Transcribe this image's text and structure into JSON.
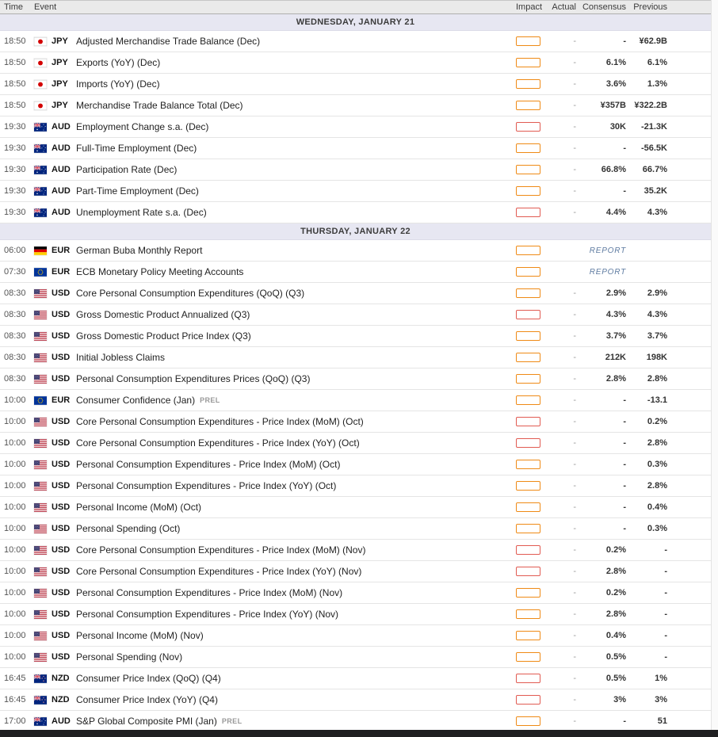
{
  "header": {
    "columns": {
      "time": "Time",
      "event": "Event",
      "impact": "Impact",
      "actual": "Actual",
      "consensus": "Consensus",
      "previous": "Previous"
    }
  },
  "colors": {
    "impact_medium": "#EF8A15",
    "impact_high": "#E15B52",
    "section_bg": "#E7E7F2",
    "header_bg": "#EAEAEA",
    "report_color": "#5D7AA0"
  },
  "sections": [
    {
      "title": "WEDNESDAY, JANUARY 21",
      "rows": [
        {
          "time": "18:50",
          "flag": "jpy",
          "currency": "JPY",
          "event": "Adjusted Merchandise Trade Balance (Dec)",
          "impact": "medium",
          "actual": "-",
          "consensus": "-",
          "previous": "¥62.9B"
        },
        {
          "time": "18:50",
          "flag": "jpy",
          "currency": "JPY",
          "event": "Exports (YoY) (Dec)",
          "impact": "medium",
          "actual": "-",
          "consensus": "6.1%",
          "previous": "6.1%"
        },
        {
          "time": "18:50",
          "flag": "jpy",
          "currency": "JPY",
          "event": "Imports (YoY) (Dec)",
          "impact": "medium",
          "actual": "-",
          "consensus": "3.6%",
          "previous": "1.3%"
        },
        {
          "time": "18:50",
          "flag": "jpy",
          "currency": "JPY",
          "event": "Merchandise Trade Balance Total (Dec)",
          "impact": "medium",
          "actual": "-",
          "consensus": "¥357B",
          "previous": "¥322.2B"
        },
        {
          "time": "19:30",
          "flag": "au",
          "currency": "AUD",
          "event": "Employment Change s.a. (Dec)",
          "impact": "high",
          "actual": "-",
          "consensus": "30K",
          "previous": "-21.3K"
        },
        {
          "time": "19:30",
          "flag": "au",
          "currency": "AUD",
          "event": "Full-Time Employment (Dec)",
          "impact": "medium",
          "actual": "-",
          "consensus": "-",
          "previous": "-56.5K"
        },
        {
          "time": "19:30",
          "flag": "au",
          "currency": "AUD",
          "event": "Participation Rate (Dec)",
          "impact": "medium",
          "actual": "-",
          "consensus": "66.8%",
          "previous": "66.7%"
        },
        {
          "time": "19:30",
          "flag": "au",
          "currency": "AUD",
          "event": "Part-Time Employment (Dec)",
          "impact": "medium",
          "actual": "-",
          "consensus": "-",
          "previous": "35.2K"
        },
        {
          "time": "19:30",
          "flag": "au",
          "currency": "AUD",
          "event": "Unemployment Rate s.a. (Dec)",
          "impact": "high",
          "actual": "-",
          "consensus": "4.4%",
          "previous": "4.3%"
        }
      ]
    },
    {
      "title": "THURSDAY, JANUARY 22",
      "rows": [
        {
          "time": "06:00",
          "flag": "de",
          "currency": "EUR",
          "event": "German Buba Monthly Report",
          "impact": "medium",
          "actual": "",
          "report": "REPORT",
          "previous": ""
        },
        {
          "time": "07:30",
          "flag": "eu",
          "currency": "EUR",
          "event": "ECB Monetary Policy Meeting Accounts",
          "impact": "medium",
          "actual": "",
          "report": "REPORT",
          "previous": ""
        },
        {
          "time": "08:30",
          "flag": "us",
          "currency": "USD",
          "event": "Core Personal Consumption Expenditures (QoQ) (Q3)",
          "impact": "medium",
          "actual": "-",
          "consensus": "2.9%",
          "previous": "2.9%"
        },
        {
          "time": "08:30",
          "flag": "us",
          "currency": "USD",
          "event": "Gross Domestic Product Annualized (Q3)",
          "impact": "high",
          "actual": "-",
          "consensus": "4.3%",
          "previous": "4.3%"
        },
        {
          "time": "08:30",
          "flag": "us",
          "currency": "USD",
          "event": "Gross Domestic Product Price Index (Q3)",
          "impact": "medium",
          "actual": "-",
          "consensus": "3.7%",
          "previous": "3.7%"
        },
        {
          "time": "08:30",
          "flag": "us",
          "currency": "USD",
          "event": "Initial Jobless Claims",
          "impact": "medium",
          "actual": "-",
          "consensus": "212K",
          "previous": "198K"
        },
        {
          "time": "08:30",
          "flag": "us",
          "currency": "USD",
          "event": "Personal Consumption Expenditures Prices (QoQ) (Q3)",
          "impact": "medium",
          "actual": "-",
          "consensus": "2.8%",
          "previous": "2.8%"
        },
        {
          "time": "10:00",
          "flag": "eu",
          "currency": "EUR",
          "event": "Consumer Confidence (Jan)",
          "suffix": "PREL",
          "impact": "medium",
          "actual": "-",
          "consensus": "-",
          "previous": "-13.1"
        },
        {
          "time": "10:00",
          "flag": "us",
          "currency": "USD",
          "event": "Core Personal Consumption Expenditures - Price Index (MoM) (Oct)",
          "impact": "high",
          "actual": "-",
          "consensus": "-",
          "previous": "0.2%"
        },
        {
          "time": "10:00",
          "flag": "us",
          "currency": "USD",
          "event": "Core Personal Consumption Expenditures - Price Index (YoY) (Oct)",
          "impact": "high",
          "actual": "-",
          "consensus": "-",
          "previous": "2.8%"
        },
        {
          "time": "10:00",
          "flag": "us",
          "currency": "USD",
          "event": "Personal Consumption Expenditures - Price Index (MoM) (Oct)",
          "impact": "medium",
          "actual": "-",
          "consensus": "-",
          "previous": "0.3%"
        },
        {
          "time": "10:00",
          "flag": "us",
          "currency": "USD",
          "event": "Personal Consumption Expenditures - Price Index (YoY) (Oct)",
          "impact": "medium",
          "actual": "-",
          "consensus": "-",
          "previous": "2.8%"
        },
        {
          "time": "10:00",
          "flag": "us",
          "currency": "USD",
          "event": "Personal Income (MoM) (Oct)",
          "impact": "medium",
          "actual": "-",
          "consensus": "-",
          "previous": "0.4%"
        },
        {
          "time": "10:00",
          "flag": "us",
          "currency": "USD",
          "event": "Personal Spending (Oct)",
          "impact": "medium",
          "actual": "-",
          "consensus": "-",
          "previous": "0.3%"
        },
        {
          "time": "10:00",
          "flag": "us",
          "currency": "USD",
          "event": "Core Personal Consumption Expenditures - Price Index (MoM) (Nov)",
          "impact": "high",
          "actual": "-",
          "consensus": "0.2%",
          "previous": "-"
        },
        {
          "time": "10:00",
          "flag": "us",
          "currency": "USD",
          "event": "Core Personal Consumption Expenditures - Price Index (YoY) (Nov)",
          "impact": "high",
          "actual": "-",
          "consensus": "2.8%",
          "previous": "-"
        },
        {
          "time": "10:00",
          "flag": "us",
          "currency": "USD",
          "event": "Personal Consumption Expenditures - Price Index (MoM) (Nov)",
          "impact": "medium",
          "actual": "-",
          "consensus": "0.2%",
          "previous": "-"
        },
        {
          "time": "10:00",
          "flag": "us",
          "currency": "USD",
          "event": "Personal Consumption Expenditures - Price Index (YoY) (Nov)",
          "impact": "medium",
          "actual": "-",
          "consensus": "2.8%",
          "previous": "-"
        },
        {
          "time": "10:00",
          "flag": "us",
          "currency": "USD",
          "event": "Personal Income (MoM) (Nov)",
          "impact": "medium",
          "actual": "-",
          "consensus": "0.4%",
          "previous": "-"
        },
        {
          "time": "10:00",
          "flag": "us",
          "currency": "USD",
          "event": "Personal Spending (Nov)",
          "impact": "medium",
          "actual": "-",
          "consensus": "0.5%",
          "previous": "-"
        },
        {
          "time": "16:45",
          "flag": "nz",
          "currency": "NZD",
          "event": "Consumer Price Index (QoQ) (Q4)",
          "impact": "high",
          "actual": "-",
          "consensus": "0.5%",
          "previous": "1%"
        },
        {
          "time": "16:45",
          "flag": "nz",
          "currency": "NZD",
          "event": "Consumer Price Index (YoY) (Q4)",
          "impact": "high",
          "actual": "-",
          "consensus": "3%",
          "previous": "3%"
        },
        {
          "time": "17:00",
          "flag": "au",
          "currency": "AUD",
          "event": "S&P Global Composite PMI (Jan)",
          "suffix": "PREL",
          "impact": "medium",
          "actual": "-",
          "consensus": "-",
          "previous": "51"
        }
      ]
    }
  ]
}
